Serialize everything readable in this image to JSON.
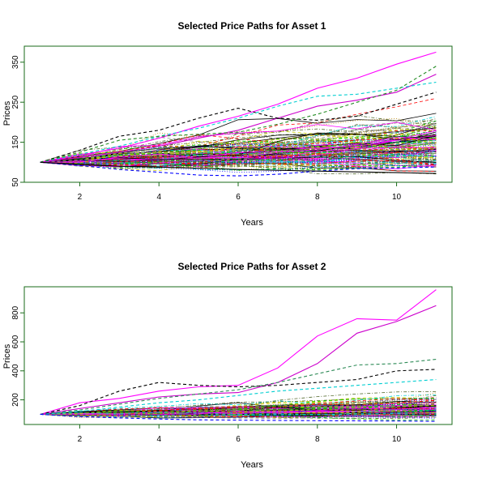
{
  "chart_data": [
    {
      "type": "line",
      "title": "Selected Price Paths for Asset 1",
      "xlabel": "Years",
      "ylabel": "Prices",
      "xlim": [
        0.6,
        11.4
      ],
      "ylim": [
        50,
        390
      ],
      "x_ticks": [
        2,
        4,
        6,
        8,
        10
      ],
      "y_ticks": [
        50,
        150,
        250,
        350
      ],
      "frame_color": "#1a6b1a",
      "x": [
        1,
        2,
        3,
        4,
        5,
        6,
        7,
        8,
        9,
        10,
        11
      ],
      "highlighted_series": [
        {
          "color": "#ff00ff",
          "dash": "solid",
          "values": [
            100,
            118,
            135,
            160,
            190,
            215,
            245,
            285,
            310,
            345,
            375
          ]
        },
        {
          "color": "#cc00cc",
          "dash": "solid",
          "values": [
            100,
            112,
            125,
            140,
            160,
            180,
            210,
            240,
            255,
            275,
            320
          ]
        },
        {
          "color": "#000000",
          "dash": "dash",
          "values": [
            100,
            130,
            165,
            180,
            210,
            235,
            210,
            205,
            215,
            245,
            275
          ]
        },
        {
          "color": "#00ced1",
          "dash": "dash",
          "values": [
            100,
            120,
            140,
            165,
            185,
            210,
            240,
            265,
            270,
            285,
            300
          ]
        },
        {
          "color": "#228b22",
          "dash": "dash",
          "values": [
            100,
            125,
            155,
            165,
            170,
            175,
            195,
            220,
            250,
            280,
            340
          ]
        },
        {
          "color": "#0000ff",
          "dash": "dash",
          "values": [
            100,
            92,
            82,
            75,
            68,
            66,
            70,
            78,
            84,
            86,
            88
          ]
        },
        {
          "color": "#000000",
          "dash": "solid",
          "values": [
            100,
            95,
            90,
            88,
            85,
            82,
            80,
            78,
            76,
            74,
            72
          ]
        }
      ],
      "bundle": {
        "count": 160,
        "start": 100,
        "drift": 0.035,
        "volatility": 0.075,
        "seed": 7
      }
    },
    {
      "type": "line",
      "title": "Selected Price Paths for Asset 2",
      "xlabel": "Years",
      "ylabel": "Prices",
      "xlim": [
        0.6,
        11.4
      ],
      "ylim": [
        30,
        980
      ],
      "x_ticks": [
        2,
        4,
        6,
        8,
        10
      ],
      "y_ticks": [
        200,
        400,
        600,
        800
      ],
      "frame_color": "#1a6b1a",
      "x": [
        1,
        2,
        3,
        4,
        5,
        6,
        7,
        8,
        9,
        10,
        11
      ],
      "highlighted_series": [
        {
          "color": "#ff00ff",
          "dash": "solid",
          "values": [
            100,
            180,
            210,
            260,
            290,
            300,
            420,
            640,
            760,
            750,
            960
          ]
        },
        {
          "color": "#cc00cc",
          "dash": "solid",
          "values": [
            100,
            140,
            180,
            220,
            240,
            250,
            320,
            450,
            660,
            740,
            850
          ]
        },
        {
          "color": "#2e8b57",
          "dash": "dash",
          "values": [
            100,
            130,
            170,
            210,
            240,
            270,
            320,
            380,
            440,
            450,
            480
          ]
        },
        {
          "color": "#000000",
          "dash": "dash",
          "values": [
            100,
            160,
            260,
            320,
            300,
            290,
            300,
            320,
            340,
            400,
            410
          ]
        },
        {
          "color": "#00ced1",
          "dash": "dash",
          "values": [
            100,
            120,
            150,
            180,
            200,
            230,
            260,
            280,
            300,
            320,
            340
          ]
        },
        {
          "color": "#0000ff",
          "dash": "dash",
          "values": [
            100,
            85,
            75,
            68,
            62,
            60,
            58,
            56,
            55,
            54,
            52
          ]
        }
      ],
      "bundle": {
        "count": 160,
        "start": 100,
        "drift": 0.035,
        "volatility": 0.09,
        "seed": 21
      }
    }
  ],
  "palette": [
    "#000000",
    "#ff0000",
    "#00cd00",
    "#0000ff",
    "#00ced1",
    "#ff00ff",
    "#cdcd00",
    "#8b8b8b",
    "#b8860b",
    "#556b2f"
  ]
}
